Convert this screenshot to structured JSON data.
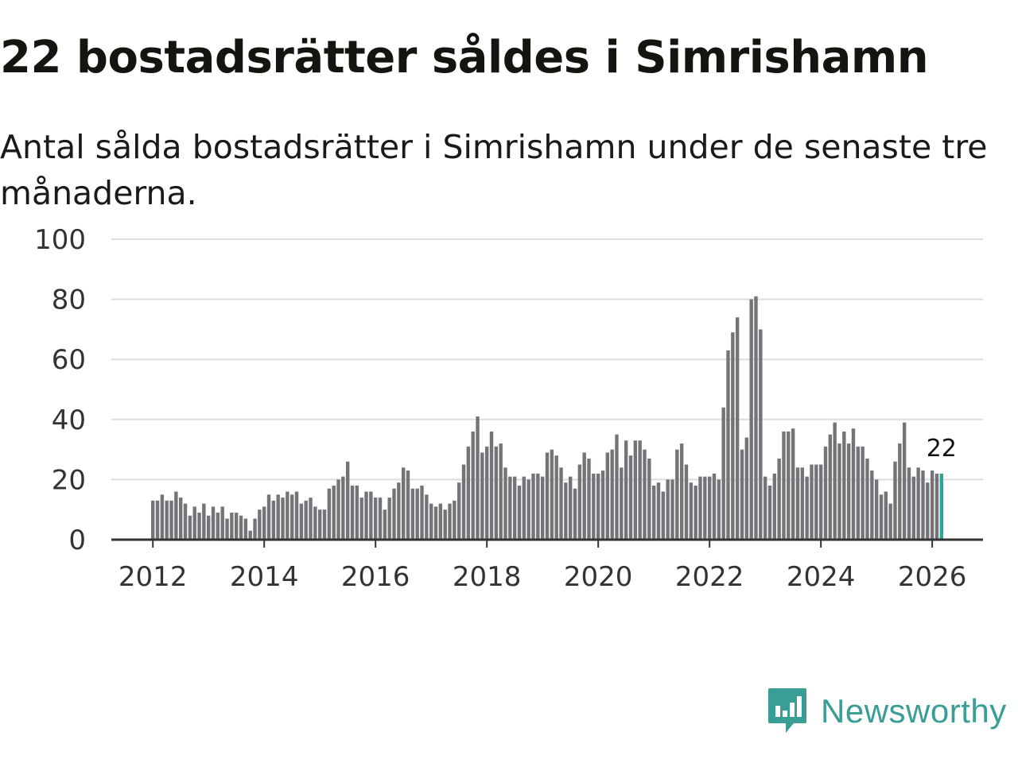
{
  "header": {
    "title": "22 bostadsrätter såldes i Simrishamn",
    "subtitle": "Antal sålda bostadsrätter i Simrishamn under de senaste tre månaderna."
  },
  "brand": {
    "name": "Newsworthy",
    "icon": "newsworthy-logo-icon"
  },
  "colors": {
    "bar": "#767378",
    "highlight": "#2aa59a",
    "grid": "#dddddd",
    "axis": "#333333",
    "brand": "#3a9e97"
  },
  "chart_data": {
    "type": "bar",
    "title": "22 bostadsrätter såldes i Simrishamn",
    "xlabel": "",
    "ylabel": "",
    "ylim": [
      0,
      100
    ],
    "yticks": [
      0,
      20,
      40,
      60,
      80,
      100
    ],
    "xticks": [
      "2012",
      "2014",
      "2016",
      "2018",
      "2020",
      "2022",
      "2024",
      "2026"
    ],
    "x_start": "2012-01",
    "x_interval": "month",
    "values": [
      13,
      13,
      15,
      13,
      13,
      16,
      14,
      12,
      8,
      11,
      9,
      12,
      8,
      11,
      9,
      11,
      7,
      9,
      9,
      8,
      7,
      3,
      7,
      10,
      11,
      15,
      13,
      15,
      14,
      16,
      15,
      16,
      12,
      13,
      14,
      11,
      10,
      10,
      17,
      18,
      20,
      21,
      26,
      18,
      18,
      14,
      16,
      16,
      14,
      14,
      10,
      14,
      17,
      19,
      24,
      23,
      17,
      17,
      18,
      15,
      12,
      11,
      12,
      10,
      12,
      13,
      19,
      25,
      31,
      36,
      41,
      29,
      31,
      36,
      31,
      32,
      24,
      21,
      21,
      18,
      21,
      20,
      22,
      22,
      21,
      29,
      30,
      28,
      24,
      19,
      21,
      17,
      25,
      29,
      27,
      22,
      22,
      23,
      29,
      30,
      35,
      24,
      33,
      28,
      33,
      33,
      30,
      27,
      18,
      19,
      16,
      20,
      20,
      30,
      32,
      25,
      19,
      18,
      21,
      21,
      21,
      22,
      20,
      44,
      63,
      69,
      74,
      30,
      34,
      80,
      81,
      70,
      21,
      18,
      22,
      27,
      36,
      36,
      37,
      24,
      24,
      21,
      25,
      25,
      25,
      31,
      35,
      39,
      32,
      36,
      32,
      37,
      31,
      31,
      27,
      23,
      20,
      15,
      16,
      12,
      26,
      32,
      39,
      24,
      21,
      24,
      23,
      19,
      23,
      22,
      22
    ],
    "highlight": {
      "label": "2026-03",
      "value": 22,
      "label_text": "22"
    }
  }
}
